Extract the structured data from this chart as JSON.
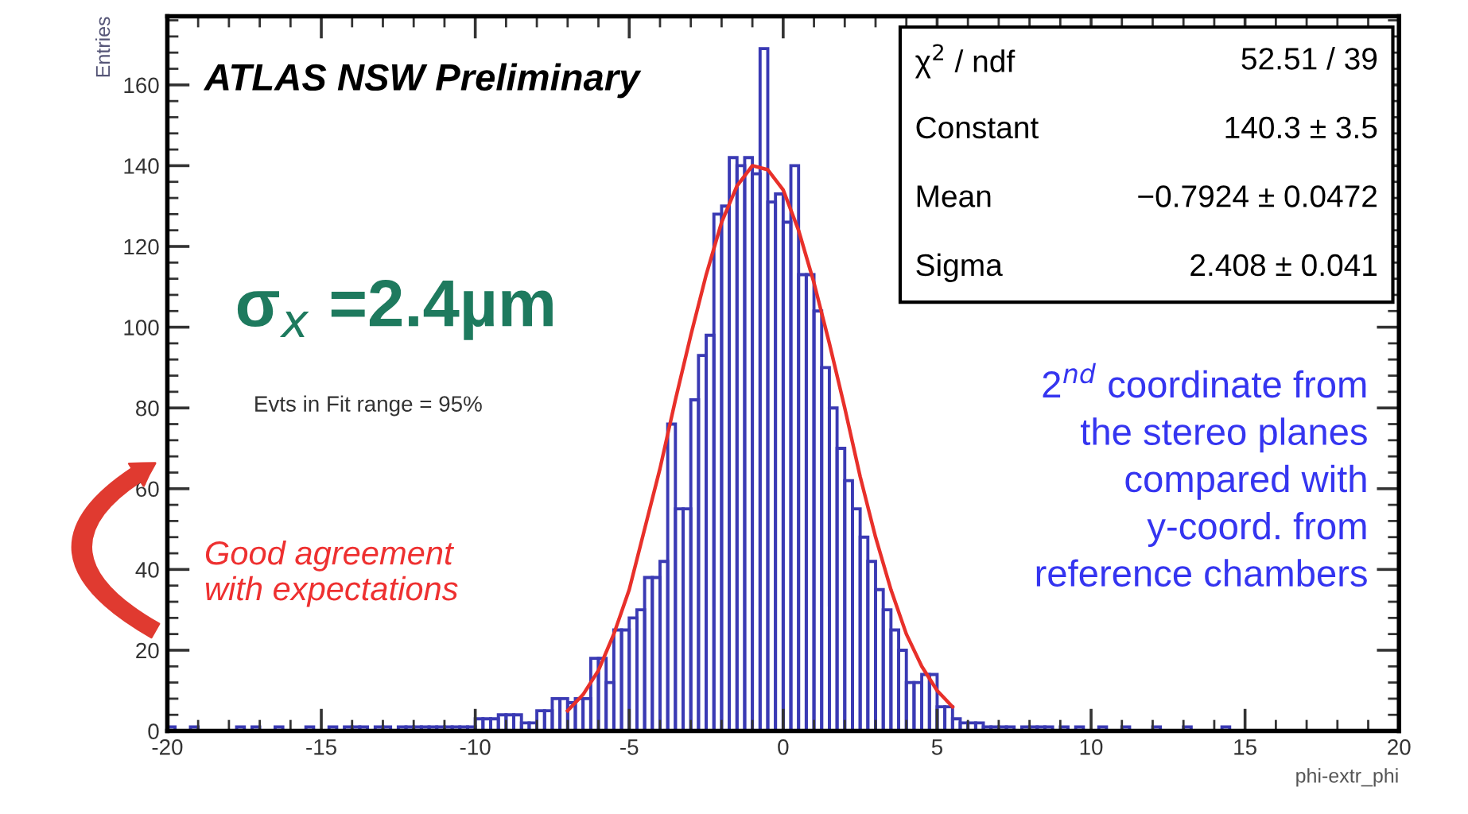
{
  "chart_data": {
    "type": "histogram",
    "xlabel": "phi-extr_phi",
    "ylabel": "Entries",
    "bins": [
      -20,
      -19.75,
      -19.5,
      -19.25,
      -19,
      -18.75,
      -18.5,
      -18.25,
      -18,
      -17.75,
      -17.5,
      -17.25,
      -17,
      -16.75,
      -16.5,
      -16.25,
      -16,
      -15.75,
      -15.5,
      -15.25,
      -15,
      -14.75,
      -14.5,
      -14.25,
      -14,
      -13.75,
      -13.5,
      -13.25,
      -13,
      -12.75,
      -12.5,
      -12.25,
      -12,
      -11.75,
      -11.5,
      -11.25,
      -11,
      -10.75,
      -10.5,
      -10.25,
      -10,
      -9.75,
      -9.5,
      -9.25,
      -9,
      -8.75,
      -8.5,
      -8.25,
      -8,
      -7.75,
      -7.5,
      -7.25,
      -7,
      -6.75,
      -6.5,
      -6.25,
      -6,
      -5.75,
      -5.5,
      -5.25,
      -5,
      -4.75,
      -4.5,
      -4.25,
      -4,
      -3.75,
      -3.5,
      -3.25,
      -3,
      -2.75,
      -2.5,
      -2.25,
      -2,
      -1.75,
      -1.5,
      -1.25,
      -1,
      -0.75,
      -0.5,
      -0.25,
      0,
      0.25,
      0.5,
      0.75,
      1,
      1.25,
      1.5,
      1.75,
      2,
      2.25,
      2.5,
      2.75,
      3,
      3.25,
      3.5,
      3.75,
      4,
      4.25,
      4.5,
      4.75,
      5,
      5.25,
      5.5,
      5.75,
      6,
      6.25,
      6.5,
      6.75,
      7,
      7.25,
      7.5,
      7.75,
      8,
      8.25,
      8.5,
      8.75,
      9,
      9.25,
      9.5,
      9.75,
      10,
      10.25,
      10.5,
      10.75,
      11,
      11.25,
      11.5,
      11.75,
      12,
      12.25,
      12.5,
      12.75,
      13,
      13.25,
      13.5,
      13.75,
      14,
      14.25,
      14.5,
      14.75,
      15,
      15.25,
      15.5,
      15.75,
      16,
      16.25,
      16.5,
      16.75,
      17,
      17.25,
      17.5,
      17.75,
      18,
      18.25,
      18.5,
      18.75,
      19,
      19.25,
      19.5,
      19.75,
      20
    ],
    "color": "#3a3ab4",
    "values": [
      1,
      0,
      0,
      1,
      0,
      0,
      0,
      0,
      0,
      1,
      0,
      1,
      0,
      0,
      1,
      0,
      0,
      0,
      1,
      0,
      0,
      1,
      0,
      1,
      1,
      1,
      0,
      1,
      1,
      0,
      1,
      1,
      1,
      1,
      1,
      1,
      1,
      1,
      1,
      1,
      3,
      3,
      3,
      4,
      4,
      4,
      2,
      2,
      5,
      5,
      8,
      8,
      7,
      8,
      8,
      18,
      18,
      12,
      25,
      25,
      28,
      30,
      38,
      38,
      42,
      76,
      55,
      55,
      82,
      93,
      98,
      128,
      130,
      142,
      140,
      142,
      138,
      169,
      131,
      133,
      126,
      140,
      113,
      113,
      104,
      90,
      80,
      70,
      62,
      55,
      48,
      42,
      35,
      30,
      25,
      20,
      12,
      12,
      14,
      14,
      6,
      6,
      3,
      2,
      2,
      2,
      1,
      1,
      1,
      1,
      0,
      1,
      1,
      1,
      1,
      0,
      1,
      0,
      1,
      0,
      0,
      1,
      0,
      0,
      1,
      0,
      0,
      0,
      1,
      0,
      0,
      0,
      1,
      0,
      0,
      0,
      0,
      1,
      0,
      0,
      0,
      0,
      0,
      0,
      0,
      0,
      0,
      0,
      0,
      0,
      0,
      0,
      0,
      0,
      0,
      0,
      0,
      0,
      0,
      0
    ],
    "series": [
      {
        "type": "line",
        "color": "#e8302a",
        "x": [
          -7,
          -6.5,
          -6,
          -5.5,
          -5,
          -4.5,
          -4,
          -3.5,
          -3,
          -2.5,
          -2,
          -1.5,
          -1,
          -0.5,
          0,
          0.5,
          1,
          1.5,
          2,
          2.5,
          3,
          3.5,
          4,
          4.5,
          5,
          5.5
        ],
        "values": [
          5,
          9,
          15,
          24,
          35,
          50,
          65,
          82,
          98,
          113,
          126,
          135,
          140,
          139,
          134,
          124,
          111,
          96,
          80,
          63,
          48,
          35,
          24,
          16,
          10,
          6
        ]
      }
    ],
    "xlim": [
      -20,
      20
    ],
    "xticks": [
      -20,
      -15,
      -10,
      -5,
      0,
      5,
      10,
      15,
      20
    ],
    "ylim": [
      0,
      177
    ],
    "yticks": [
      0,
      20,
      40,
      60,
      80,
      100,
      120,
      140,
      160
    ],
    "grid": false,
    "legend": false,
    "annotations": [
      "ATLAS NSW Preliminary",
      "σ$_{x}$ =2.4µm",
      "Evts in Fit range = 95%",
      "Good agreement\nwith expectations",
      "2$^{nd}$ coordinate from",
      "the stereo planes",
      "compared with",
      "y-coord. from",
      "reference chambers",
      "χ$^{2}$ / ndf\t52.51 / 39",
      "Constant\t140.3 ± 3.5",
      "Mean\t−0.7924 ± 0.0472",
      "Sigma\t2.408 ± 0.041"
    ]
  }
}
